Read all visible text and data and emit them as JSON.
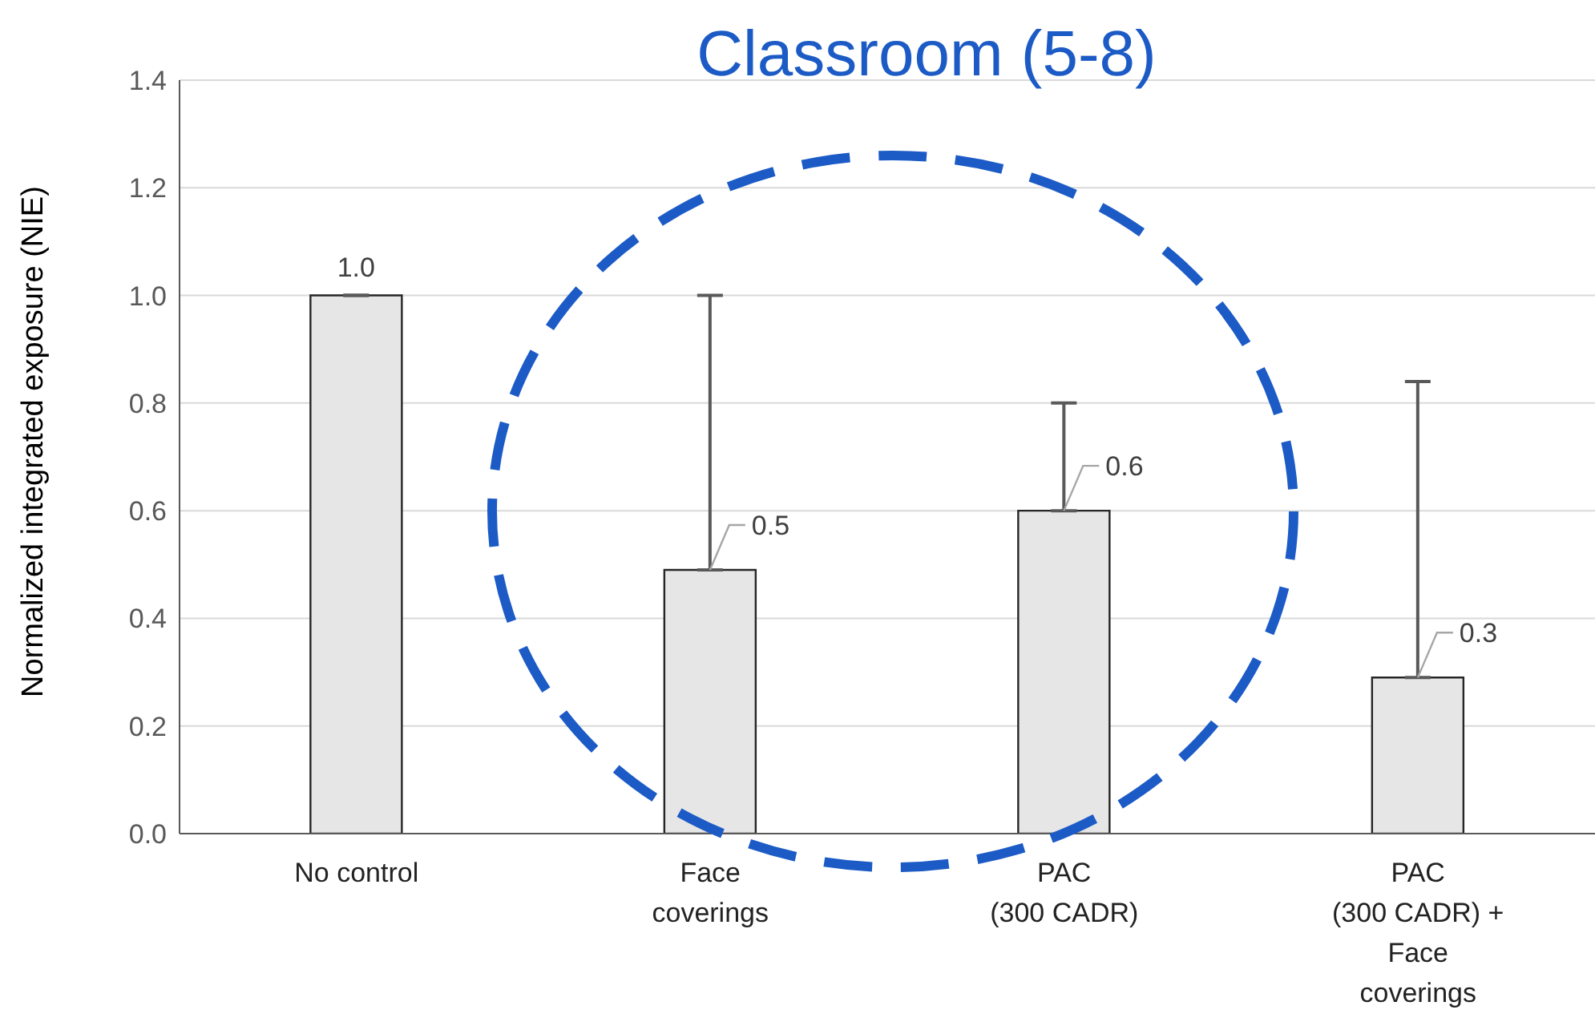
{
  "chart_data": {
    "type": "bar",
    "title": "Classroom (5-8)",
    "ylabel": "Normalized integrated exposure (NIE)",
    "categories": [
      "No control",
      "Face coverings",
      "PAC (300 CADR)",
      "PAC (300 CADR) + Face coverings"
    ],
    "values": [
      1.0,
      0.49,
      0.6,
      0.29
    ],
    "value_labels": [
      "1.0",
      "0.5",
      "0.6",
      "0.3"
    ],
    "errors": [
      null,
      [
        0.49,
        1.0
      ],
      [
        0.6,
        0.8
      ],
      [
        0.29,
        0.84
      ]
    ],
    "color": "#e7e6e6",
    "ylim": [
      0,
      1.4
    ],
    "yticks": [
      {
        "value": 0,
        "label": "0.0"
      },
      0.2,
      0.4,
      0.6,
      0.8,
      {
        "value": 1,
        "label": "1.0"
      },
      1.2,
      1.4
    ],
    "grid": "y",
    "legend": false
  }
}
